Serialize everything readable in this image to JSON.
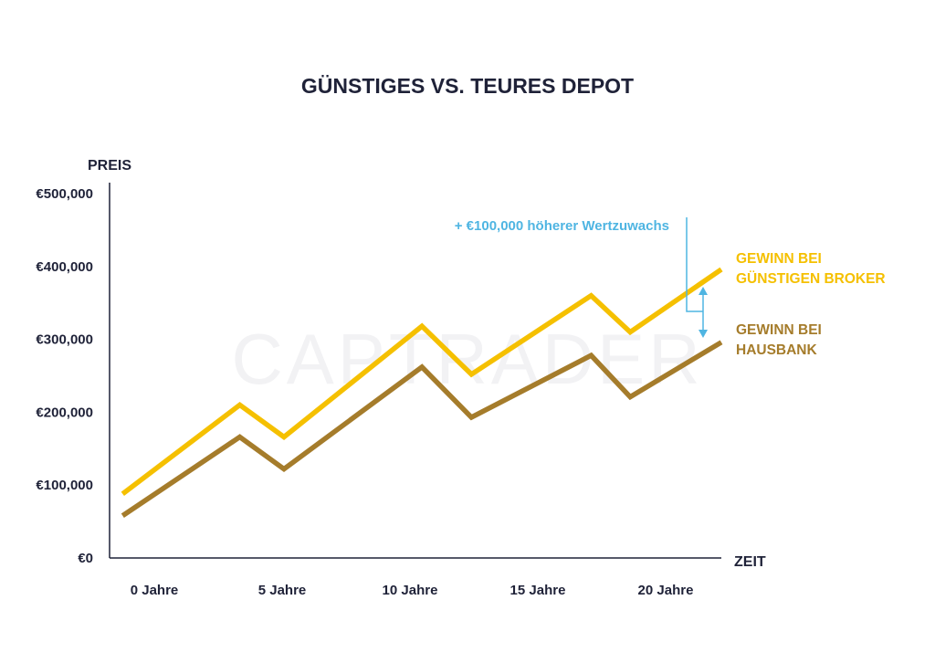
{
  "chart_data": {
    "type": "line",
    "title": "GÜNSTIGES VS. TEURES DEPOT",
    "ylabel": "PREIS",
    "xlabel": "ZEIT",
    "watermark": "CAPTRADER",
    "ylim": [
      0,
      500000
    ],
    "xlim": [
      -0.5,
      23
    ],
    "y_ticks": [
      {
        "value": 0,
        "label": "€0"
      },
      {
        "value": 100000,
        "label": "€100,000"
      },
      {
        "value": 200000,
        "label": "€200,000"
      },
      {
        "value": 300000,
        "label": "€300,000"
      },
      {
        "value": 400000,
        "label": "€400,000"
      },
      {
        "value": 500000,
        "label": "€500,000"
      }
    ],
    "x_ticks": [
      {
        "value": 0,
        "label": "0 Jahre"
      },
      {
        "value": 5,
        "label": "5 Jahre"
      },
      {
        "value": 10,
        "label": "10 Jahre"
      },
      {
        "value": 15,
        "label": "15 Jahre"
      },
      {
        "value": 20,
        "label": "20 Jahre"
      }
    ],
    "series": [
      {
        "name_lines": [
          "GEWINN BEI",
          "GÜNSTIGEN BROKER"
        ],
        "color": "#f5c000",
        "x": [
          0,
          4.5,
          6.2,
          11.5,
          13.4,
          18.0,
          19.5,
          23.0
        ],
        "y": [
          88000,
          210000,
          166000,
          318000,
          252000,
          360000,
          310000,
          396000
        ]
      },
      {
        "name_lines": [
          "GEWINN BEI",
          "HAUSBANK"
        ],
        "color": "#a57c2b",
        "x": [
          0,
          4.5,
          6.2,
          11.5,
          13.4,
          18.0,
          19.5,
          23.0
        ],
        "y": [
          58000,
          166000,
          122000,
          262000,
          193000,
          278000,
          221000,
          296000
        ]
      }
    ],
    "annotation": {
      "text": "+ €100,000 höherer Wertzuwachs",
      "color": "#4fb5e2"
    },
    "axis_color": "#1f2238"
  }
}
